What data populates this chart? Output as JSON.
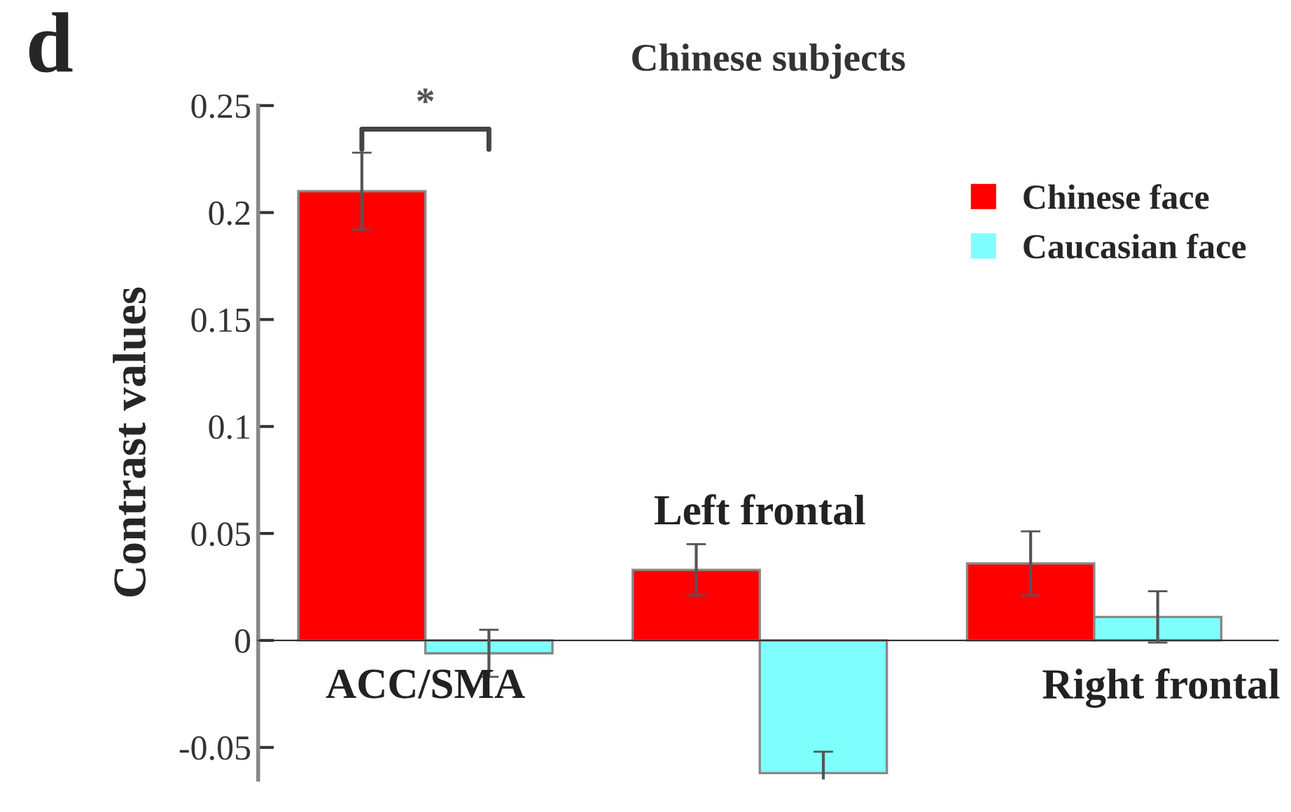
{
  "chart_data": {
    "type": "bar",
    "title": "Chinese subjects",
    "ylabel": "Contrast values",
    "categories": [
      "ACC/SMA",
      "Left frontal",
      "Right frontal"
    ],
    "series": [
      {
        "name": "Chinese face",
        "color": "#ff0000",
        "values": [
          0.21,
          0.033,
          0.036
        ],
        "errors": [
          0.018,
          0.012,
          0.015
        ]
      },
      {
        "name": "Caucasian face",
        "color": "#80ffff",
        "values": [
          -0.006,
          -0.062,
          0.011
        ],
        "errors": [
          0.011,
          0.01,
          0.012
        ]
      }
    ],
    "ylim": [
      -0.065,
      0.25
    ],
    "yticks": [
      {
        "value": -0.05,
        "label": "-0.05"
      },
      {
        "value": 0,
        "label": "0"
      },
      {
        "value": 0.05,
        "label": "0.05"
      },
      {
        "value": 0.1,
        "label": "0.1"
      },
      {
        "value": 0.15,
        "label": "0.15"
      },
      {
        "value": 0.2,
        "label": "0.2"
      },
      {
        "value": 0.25,
        "label": "0.25"
      }
    ],
    "annotations": [
      "d",
      "*"
    ],
    "legend": "top right",
    "grid": false
  }
}
